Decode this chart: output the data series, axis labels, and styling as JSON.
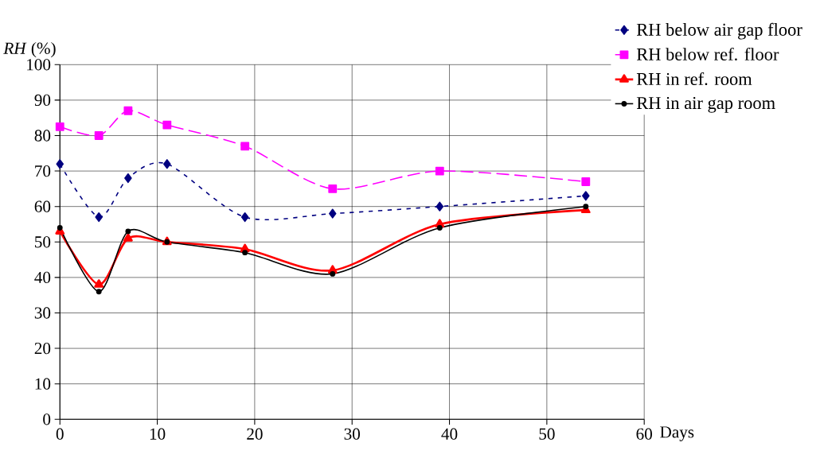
{
  "chart_data": {
    "type": "line",
    "xlabel": "Days",
    "ylabel": "*RH* (%)",
    "xlim": [
      0,
      60
    ],
    "xticks": [
      0,
      10,
      20,
      30,
      40,
      50,
      60
    ],
    "ylim": [
      0,
      100
    ],
    "yticks": [
      0,
      10,
      20,
      30,
      40,
      50,
      60,
      70,
      80,
      90,
      100
    ],
    "grid": true,
    "legend": "top right",
    "x": [
      0,
      4,
      7,
      11,
      19,
      28,
      39,
      54
    ],
    "series": [
      {
        "name": "RH  below air gap floor",
        "color": "#000080",
        "marker": "diamond",
        "line_style": "dotted",
        "values": [
          72,
          57,
          68,
          72,
          57,
          58,
          60,
          63
        ]
      },
      {
        "name": "RH below ref. floor",
        "color": "#ff00ff",
        "marker": "square",
        "line_style": "dashed",
        "values": [
          82.5,
          80,
          87,
          83,
          77,
          65,
          70,
          67
        ]
      },
      {
        "name": "RH in ref. room",
        "color": "#ff0000",
        "marker": "triangle",
        "line_style": "solid",
        "values": [
          53,
          38,
          51,
          50,
          48,
          42,
          55,
          59
        ]
      },
      {
        "name": "RH in air gap room",
        "color": "#000000",
        "marker": "circle",
        "line_style": "solid",
        "values": [
          54,
          36,
          53,
          50,
          47,
          41,
          54,
          60
        ]
      }
    ]
  }
}
